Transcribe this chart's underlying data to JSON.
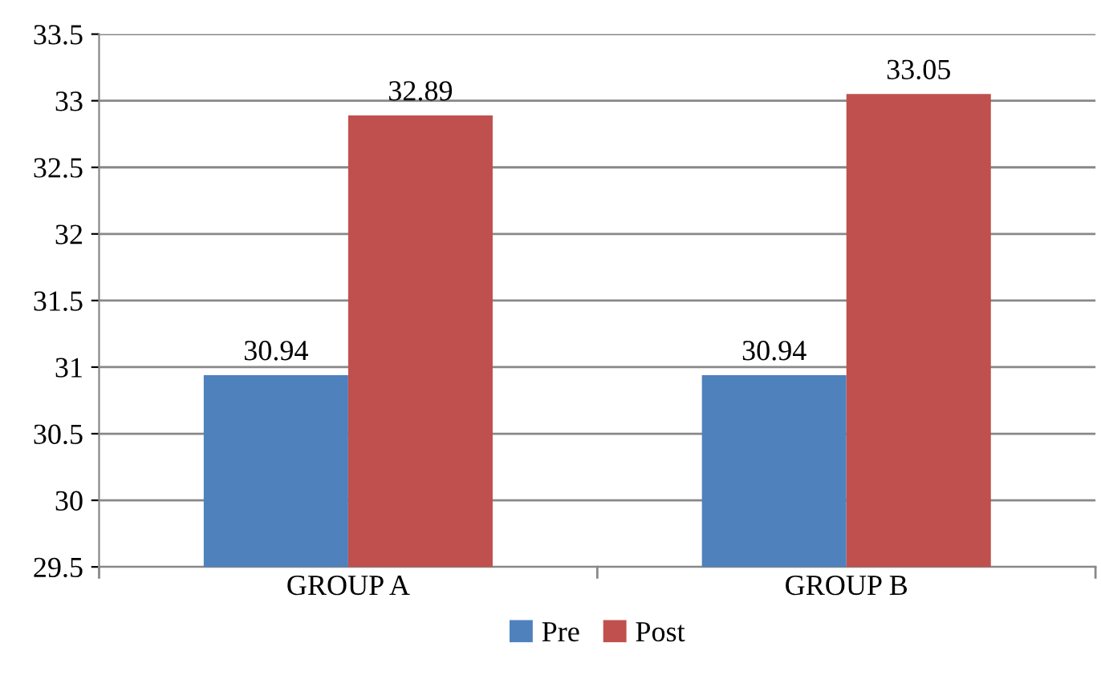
{
  "chart_data": {
    "type": "bar",
    "categories": [
      "GROUP A",
      "GROUP B"
    ],
    "series": [
      {
        "name": "Pre",
        "color": "#4f81bd",
        "values": [
          30.94,
          30.94
        ]
      },
      {
        "name": "Post",
        "color": "#c0504d",
        "values": [
          32.89,
          33.05
        ]
      }
    ],
    "ylim": [
      29.5,
      33.5
    ],
    "yticks": [
      29.5,
      30,
      30.5,
      31,
      31.5,
      32,
      32.5,
      33,
      33.5
    ],
    "grid": "y",
    "data_labels": true,
    "legend": "bottom"
  }
}
